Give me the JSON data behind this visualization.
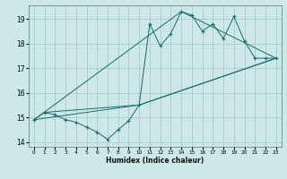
{
  "title": "",
  "xlabel": "Humidex (Indice chaleur)",
  "ylabel": "",
  "background_color": "#cce8e8",
  "grid_color": "#aacccc",
  "line_color": "#1a6b6b",
  "xlim": [
    -0.5,
    23.5
  ],
  "ylim": [
    13.8,
    19.55
  ],
  "yticks": [
    14,
    15,
    16,
    17,
    18,
    19
  ],
  "xticks": [
    0,
    1,
    2,
    3,
    4,
    5,
    6,
    7,
    8,
    9,
    10,
    11,
    12,
    13,
    14,
    15,
    16,
    17,
    18,
    19,
    20,
    21,
    22,
    23
  ],
  "series": [
    [
      0,
      14.9
    ],
    [
      1,
      15.2
    ],
    [
      2,
      15.1
    ],
    [
      3,
      14.9
    ],
    [
      4,
      14.8
    ],
    [
      5,
      14.6
    ],
    [
      6,
      14.4
    ],
    [
      7,
      14.1
    ],
    [
      8,
      14.5
    ],
    [
      9,
      14.85
    ],
    [
      10,
      15.5
    ],
    [
      11,
      18.8
    ],
    [
      12,
      17.9
    ],
    [
      13,
      18.4
    ],
    [
      14,
      19.3
    ],
    [
      15,
      19.15
    ],
    [
      16,
      18.5
    ],
    [
      17,
      18.8
    ],
    [
      18,
      18.2
    ],
    [
      19,
      19.1
    ],
    [
      20,
      18.1
    ],
    [
      21,
      17.4
    ],
    [
      22,
      17.4
    ],
    [
      23,
      17.4
    ]
  ],
  "line2": [
    [
      0,
      14.9
    ],
    [
      10,
      15.5
    ],
    [
      23,
      17.4
    ]
  ],
  "line3": [
    [
      0,
      14.9
    ],
    [
      14,
      19.3
    ],
    [
      23,
      17.4
    ]
  ],
  "line4": [
    [
      1,
      15.2
    ],
    [
      10,
      15.5
    ],
    [
      23,
      17.4
    ]
  ]
}
